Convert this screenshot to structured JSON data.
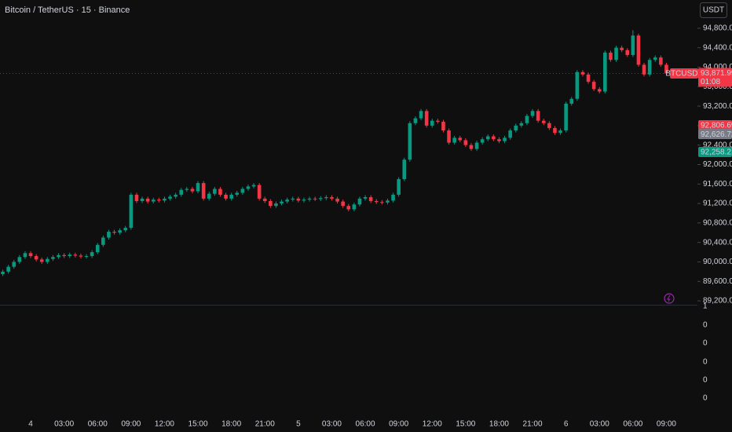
{
  "chart_data": {
    "type": "candlestick",
    "title": "Bitcoin / TetherUS · 15 · Binance",
    "currency_button": "USDT",
    "up_color": "#089981",
    "down_color": "#f23645",
    "categories": [
      null,
      null,
      null,
      null,
      null,
      "4",
      null,
      null,
      null,
      null,
      null,
      "03:00",
      null,
      null,
      null,
      null,
      null,
      "06:00",
      null,
      null,
      null,
      null,
      null,
      "09:00",
      null,
      null,
      null,
      null,
      null,
      "12:00",
      null,
      null,
      null,
      null,
      null,
      "15:00",
      null,
      null,
      null,
      null,
      null,
      "18:00",
      null,
      null,
      null,
      null,
      null,
      "21:00",
      null,
      null,
      null,
      null,
      null,
      "5",
      null,
      null,
      null,
      null,
      null,
      "03:00",
      null,
      null,
      null,
      null,
      null,
      "06:00",
      null,
      null,
      null,
      null,
      null,
      "09:00",
      null,
      null,
      null,
      null,
      null,
      "12:00",
      null,
      null,
      null,
      null,
      null,
      "15:00",
      null,
      null,
      null,
      null,
      null,
      "18:00",
      null,
      null,
      null,
      null,
      null,
      "21:00",
      null,
      null,
      null,
      null,
      null,
      "6",
      null,
      null,
      null,
      null,
      null,
      "03:00",
      null,
      null,
      null,
      null,
      null,
      "06:00",
      null,
      null,
      null,
      null,
      null,
      "09:00"
    ],
    "ohlc": [
      [
        89750,
        89840,
        89710,
        89800
      ],
      [
        89800,
        89940,
        89760,
        89900
      ],
      [
        89900,
        90040,
        89860,
        90000
      ],
      [
        90000,
        90140,
        89960,
        90100
      ],
      [
        90100,
        90220,
        90060,
        90180
      ],
      [
        90180,
        90220,
        90080,
        90120
      ],
      [
        90120,
        90160,
        90010,
        90050
      ],
      [
        90050,
        90090,
        89960,
        90000
      ],
      [
        90000,
        90100,
        89960,
        90060
      ],
      [
        90060,
        90140,
        90020,
        90100
      ],
      [
        90100,
        90180,
        90060,
        90140
      ],
      [
        90140,
        90180,
        90080,
        90120
      ],
      [
        90120,
        90190,
        90080,
        90150
      ],
      [
        90150,
        90190,
        90090,
        90130
      ],
      [
        90130,
        90170,
        90070,
        90110
      ],
      [
        90110,
        90160,
        90070,
        90120
      ],
      [
        90120,
        90240,
        90080,
        90200
      ],
      [
        90200,
        90390,
        90160,
        90350
      ],
      [
        90350,
        90540,
        90310,
        90500
      ],
      [
        90500,
        90660,
        90460,
        90620
      ],
      [
        90620,
        90660,
        90560,
        90600
      ],
      [
        90600,
        90690,
        90560,
        90650
      ],
      [
        90650,
        90740,
        90610,
        90700
      ],
      [
        90700,
        91420,
        90660,
        91380
      ],
      [
        91380,
        91420,
        91210,
        91250
      ],
      [
        91250,
        91340,
        91210,
        91300
      ],
      [
        91300,
        91340,
        91200,
        91240
      ],
      [
        91240,
        91320,
        91200,
        91280
      ],
      [
        91280,
        91320,
        91220,
        91260
      ],
      [
        91260,
        91340,
        91220,
        91300
      ],
      [
        91300,
        91380,
        91260,
        91340
      ],
      [
        91340,
        91420,
        91300,
        91380
      ],
      [
        91380,
        91520,
        91340,
        91480
      ],
      [
        91480,
        91540,
        91440,
        91500
      ],
      [
        91500,
        91540,
        91410,
        91450
      ],
      [
        91450,
        91660,
        91410,
        91620
      ],
      [
        91620,
        91660,
        91260,
        91300
      ],
      [
        91300,
        91440,
        91260,
        91400
      ],
      [
        91400,
        91540,
        91360,
        91500
      ],
      [
        91500,
        91540,
        91340,
        91380
      ],
      [
        91380,
        91420,
        91260,
        91300
      ],
      [
        91300,
        91420,
        91260,
        91380
      ],
      [
        91380,
        91460,
        91340,
        91420
      ],
      [
        91420,
        91540,
        91380,
        91500
      ],
      [
        91500,
        91590,
        91460,
        91550
      ],
      [
        91550,
        91620,
        91510,
        91580
      ],
      [
        91580,
        91620,
        91260,
        91300
      ],
      [
        91300,
        91340,
        91210,
        91250
      ],
      [
        91250,
        91290,
        91110,
        91150
      ],
      [
        91150,
        91240,
        91110,
        91200
      ],
      [
        91200,
        91280,
        91160,
        91240
      ],
      [
        91240,
        91320,
        91200,
        91280
      ],
      [
        91280,
        91340,
        91240,
        91300
      ],
      [
        91300,
        91340,
        91220,
        91260
      ],
      [
        91260,
        91320,
        91220,
        91280
      ],
      [
        91280,
        91340,
        91240,
        91300
      ],
      [
        91300,
        91340,
        91250,
        91290
      ],
      [
        91290,
        91350,
        91250,
        91310
      ],
      [
        91310,
        91370,
        91270,
        91330
      ],
      [
        91330,
        91370,
        91260,
        91300
      ],
      [
        91300,
        91340,
        91200,
        91240
      ],
      [
        91240,
        91280,
        91110,
        91150
      ],
      [
        91150,
        91190,
        91040,
        91080
      ],
      [
        91080,
        91220,
        91040,
        91180
      ],
      [
        91180,
        91340,
        91140,
        91300
      ],
      [
        91300,
        91370,
        91260,
        91330
      ],
      [
        91330,
        91370,
        91210,
        91250
      ],
      [
        91250,
        91290,
        91190,
        91230
      ],
      [
        91230,
        91270,
        91180,
        91220
      ],
      [
        91220,
        91300,
        91180,
        91260
      ],
      [
        91260,
        91420,
        91220,
        91380
      ],
      [
        91380,
        91740,
        91340,
        91700
      ],
      [
        91700,
        92140,
        91660,
        92100
      ],
      [
        92100,
        92890,
        92060,
        92850
      ],
      [
        92850,
        92990,
        92810,
        92950
      ],
      [
        92950,
        93140,
        92910,
        93100
      ],
      [
        93100,
        93140,
        92760,
        92800
      ],
      [
        92800,
        92940,
        92760,
        92900
      ],
      [
        92900,
        92940,
        92840,
        92880
      ],
      [
        92880,
        92920,
        92660,
        92700
      ],
      [
        92700,
        92740,
        92410,
        92450
      ],
      [
        92450,
        92590,
        92410,
        92550
      ],
      [
        92550,
        92590,
        92460,
        92500
      ],
      [
        92500,
        92540,
        92360,
        92400
      ],
      [
        92400,
        92440,
        92280,
        92320
      ],
      [
        92320,
        92490,
        92280,
        92450
      ],
      [
        92450,
        92560,
        92410,
        92520
      ],
      [
        92520,
        92620,
        92480,
        92580
      ],
      [
        92580,
        92620,
        92480,
        92520
      ],
      [
        92520,
        92560,
        92440,
        92480
      ],
      [
        92480,
        92590,
        92440,
        92550
      ],
      [
        92550,
        92740,
        92510,
        92700
      ],
      [
        92700,
        92840,
        92660,
        92800
      ],
      [
        92800,
        92890,
        92760,
        92850
      ],
      [
        92850,
        93040,
        92810,
        93000
      ],
      [
        93000,
        93140,
        92960,
        93100
      ],
      [
        93100,
        93140,
        92860,
        92900
      ],
      [
        92900,
        92940,
        92810,
        92850
      ],
      [
        92850,
        92890,
        92710,
        92750
      ],
      [
        92750,
        92790,
        92610,
        92650
      ],
      [
        92650,
        92740,
        92610,
        92700
      ],
      [
        92700,
        93290,
        92660,
        93250
      ],
      [
        93250,
        93390,
        93210,
        93350
      ],
      [
        93350,
        93940,
        93310,
        93900
      ],
      [
        93900,
        93940,
        93810,
        93850
      ],
      [
        93850,
        93890,
        93660,
        93700
      ],
      [
        93700,
        93740,
        93510,
        93550
      ],
      [
        93550,
        93590,
        93460,
        93500
      ],
      [
        93500,
        94340,
        93460,
        94300
      ],
      [
        94300,
        94340,
        94110,
        94150
      ],
      [
        94150,
        94440,
        94110,
        94400
      ],
      [
        94400,
        94440,
        94310,
        94350
      ],
      [
        94350,
        94390,
        94210,
        94250
      ],
      [
        94250,
        94760,
        94210,
        94650
      ],
      [
        94650,
        94690,
        94010,
        94050
      ],
      [
        94050,
        94090,
        93810,
        93850
      ],
      [
        93850,
        94190,
        93810,
        94150
      ],
      [
        94150,
        94240,
        94110,
        94200
      ],
      [
        94200,
        94240,
        94010,
        94050
      ],
      [
        94050,
        94090,
        93840,
        93871.99
      ]
    ],
    "ylim": [
      89120,
      95380
    ],
    "yticks": [
      {
        "value": 89200,
        "label": "89,200.00"
      },
      {
        "value": 89600,
        "label": "89,600.00"
      },
      {
        "value": 90000,
        "label": "90,000.00"
      },
      {
        "value": 90400,
        "label": "90,400.00"
      },
      {
        "value": 90800,
        "label": "90,800.00"
      },
      {
        "value": 91200,
        "label": "91,200.00"
      },
      {
        "value": 91600,
        "label": "91,600.00"
      },
      {
        "value": 92000,
        "label": "92,000.00"
      },
      {
        "value": 92400,
        "label": "92,400.00"
      },
      {
        "value": 92800,
        "label": "92,800.00"
      },
      {
        "value": 93200,
        "label": "93,200.00"
      },
      {
        "value": 93600,
        "label": "93,600.00"
      },
      {
        "value": 94000,
        "label": "94,000.00"
      },
      {
        "value": 94400,
        "label": "94,400.00"
      },
      {
        "value": 94800,
        "label": "94,800.00"
      }
    ],
    "last_price": {
      "symbol": "BTCUSDT",
      "value": 93871.99,
      "label": "93,871.99",
      "countdown": "01:08",
      "color": "#f23645"
    },
    "price_lines": [
      {
        "value": 92806.69,
        "label": "92,806.69",
        "color": "#f23645"
      },
      {
        "value": 92626.72,
        "label": "92,626.72",
        "color": "#787b86"
      },
      {
        "value": 92258.21,
        "label": "92,258.21",
        "color": "#089981"
      }
    ],
    "lower_pane_ticks": [
      "1",
      "0",
      "0",
      "0",
      "0",
      "0"
    ]
  }
}
